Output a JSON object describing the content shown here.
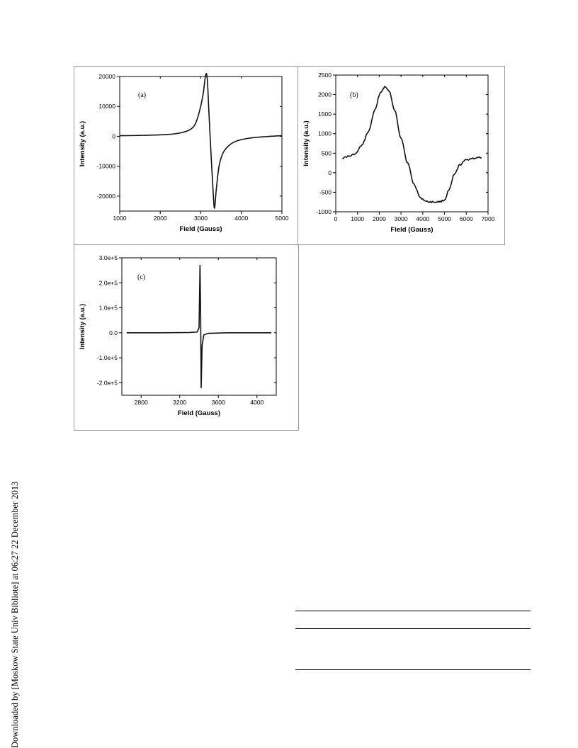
{
  "watermark": "Downloaded by [Moskow State Univ Bibliote] at 06:27 22 December 2013",
  "chart_data": [
    {
      "type": "line",
      "panel_label": "(a)",
      "xlabel": "Field (Gauss)",
      "ylabel": "Intensity (a.u.)",
      "xlim": [
        1000,
        5000
      ],
      "ylim": [
        -25000,
        20000
      ],
      "xticks": [
        1000,
        2000,
        3000,
        4000,
        5000
      ],
      "yticks": [
        20000,
        10000,
        0,
        -10000,
        -20000
      ],
      "xtick_labels": [
        "1000",
        "2000",
        "3000",
        "4000",
        "5000"
      ],
      "ytick_labels": [
        "20000",
        "10000",
        "0",
        "-10000",
        "-20000"
      ],
      "series": [
        {
          "values": [
            {
              "x": 1000,
              "y": 200
            },
            {
              "x": 1500,
              "y": 300
            },
            {
              "x": 2000,
              "y": 500
            },
            {
              "x": 2400,
              "y": 900
            },
            {
              "x": 2700,
              "y": 2000
            },
            {
              "x": 2850,
              "y": 3800
            },
            {
              "x": 2950,
              "y": 7500
            },
            {
              "x": 3050,
              "y": 13500
            },
            {
              "x": 3120,
              "y": 20500
            },
            {
              "x": 3160,
              "y": 19000
            },
            {
              "x": 3200,
              "y": 8000
            },
            {
              "x": 3260,
              "y": -8000
            },
            {
              "x": 3310,
              "y": -20000
            },
            {
              "x": 3340,
              "y": -24000
            },
            {
              "x": 3380,
              "y": -18000
            },
            {
              "x": 3450,
              "y": -10000
            },
            {
              "x": 3550,
              "y": -5500
            },
            {
              "x": 3700,
              "y": -3000
            },
            {
              "x": 3900,
              "y": -1500
            },
            {
              "x": 4200,
              "y": -600
            },
            {
              "x": 4600,
              "y": -100
            },
            {
              "x": 5000,
              "y": 200
            }
          ]
        }
      ]
    },
    {
      "type": "line",
      "panel_label": "(b)",
      "xlabel": "Field (Gauss)",
      "ylabel": "Intensity (a.u.)",
      "xlim": [
        0,
        7000
      ],
      "ylim": [
        -1000,
        2500
      ],
      "xticks": [
        0,
        1000,
        2000,
        3000,
        4000,
        5000,
        6000,
        7000
      ],
      "yticks": [
        2500,
        2000,
        1500,
        1000,
        500,
        0,
        -500,
        -1000
      ],
      "xtick_labels": [
        "0",
        "1000",
        "2000",
        "3000",
        "4000",
        "5000",
        "6000",
        "7000"
      ],
      "ytick_labels": [
        "2500",
        "2000",
        "1500",
        "1000",
        "500",
        "0",
        "-500",
        "-1000"
      ],
      "series": [
        {
          "values": [
            {
              "x": 300,
              "y": 380
            },
            {
              "x": 600,
              "y": 420
            },
            {
              "x": 900,
              "y": 480
            },
            {
              "x": 1200,
              "y": 700
            },
            {
              "x": 1500,
              "y": 1050
            },
            {
              "x": 1800,
              "y": 1600
            },
            {
              "x": 2050,
              "y": 2050
            },
            {
              "x": 2250,
              "y": 2200
            },
            {
              "x": 2450,
              "y": 2100
            },
            {
              "x": 2700,
              "y": 1600
            },
            {
              "x": 3000,
              "y": 900
            },
            {
              "x": 3300,
              "y": 250
            },
            {
              "x": 3600,
              "y": -300
            },
            {
              "x": 3900,
              "y": -650
            },
            {
              "x": 4200,
              "y": -740
            },
            {
              "x": 4500,
              "y": -750
            },
            {
              "x": 4800,
              "y": -740
            },
            {
              "x": 5000,
              "y": -700
            },
            {
              "x": 5200,
              "y": -450
            },
            {
              "x": 5450,
              "y": -50
            },
            {
              "x": 5700,
              "y": 200
            },
            {
              "x": 6000,
              "y": 330
            },
            {
              "x": 6300,
              "y": 370
            },
            {
              "x": 6700,
              "y": 390
            }
          ]
        }
      ]
    },
    {
      "type": "line",
      "panel_label": "(c)",
      "xlabel": "Field (Gauss)",
      "ylabel": "Intensity (a.u.)",
      "xlim": [
        2600,
        4200
      ],
      "ylim": [
        -250000,
        300000
      ],
      "xticks": [
        2800,
        3200,
        3600,
        4000
      ],
      "yticks": [
        300000,
        200000,
        100000,
        0,
        -100000,
        -200000
      ],
      "xtick_labels": [
        "2800",
        "3200",
        "3600",
        "4000"
      ],
      "ytick_labels": [
        "3.0e+5",
        "2.0e+5",
        "1.0e+5",
        "0.0",
        "-1.0e+5",
        "-2.0e+5"
      ],
      "series": [
        {
          "values": [
            {
              "x": 2650,
              "y": 0
            },
            {
              "x": 3000,
              "y": 0
            },
            {
              "x": 3300,
              "y": 1000
            },
            {
              "x": 3380,
              "y": 3000
            },
            {
              "x": 3400,
              "y": 20000
            },
            {
              "x": 3410,
              "y": 270000
            },
            {
              "x": 3417,
              "y": 60000
            },
            {
              "x": 3422,
              "y": -220000
            },
            {
              "x": 3432,
              "y": -50000
            },
            {
              "x": 3450,
              "y": -8000
            },
            {
              "x": 3500,
              "y": -2000
            },
            {
              "x": 3700,
              "y": 0
            },
            {
              "x": 4150,
              "y": 0
            }
          ]
        }
      ]
    }
  ]
}
